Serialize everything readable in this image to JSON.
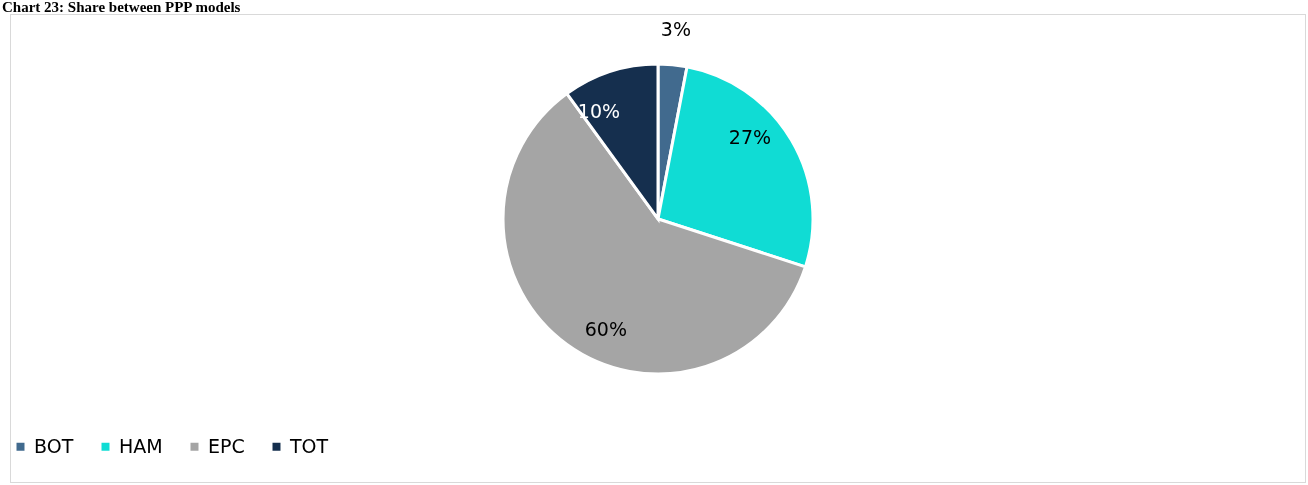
{
  "chart_data": {
    "type": "pie",
    "title": "Chart 23: Share between PPP models",
    "categories": [
      "BOT",
      "HAM",
      "EPC",
      "TOT"
    ],
    "values": [
      3,
      27,
      60,
      10
    ],
    "colors": [
      "#416a8e",
      "#10dcd4",
      "#a5a5a5",
      "#152f4e"
    ],
    "value_labels": [
      "3%",
      "27%",
      "60%",
      "10%"
    ],
    "legend": "bottom"
  }
}
